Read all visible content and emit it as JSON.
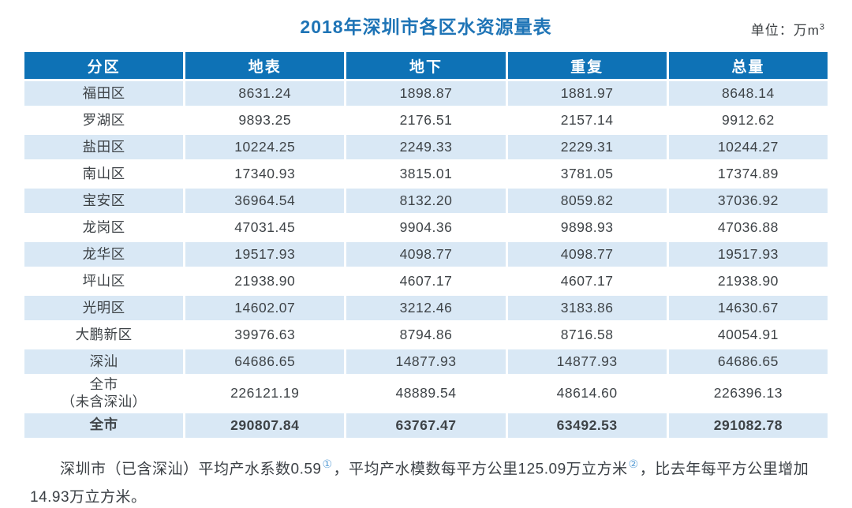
{
  "colors": {
    "header_bg": "#0e72b6",
    "row_alt_bg": "#d9e8f5",
    "title": "#1e74b6",
    "text": "#3e4347",
    "superscript": "#5b9fd6"
  },
  "chart_data": {
    "type": "table",
    "title": "2018年深圳市各区水资源量表",
    "unit": {
      "prefix": "单位：万m",
      "sup": "3"
    },
    "columns": [
      "分区",
      "地表",
      "地下",
      "重复",
      "总量"
    ],
    "rows": [
      {
        "name": "福田区",
        "values": [
          "8631.24",
          "1898.87",
          "1881.97",
          "8648.14"
        ]
      },
      {
        "name": "罗湖区",
        "values": [
          "9893.25",
          "2176.51",
          "2157.14",
          "9912.62"
        ]
      },
      {
        "name": "盐田区",
        "values": [
          "10224.25",
          "2249.33",
          "2229.31",
          "10244.27"
        ]
      },
      {
        "name": "南山区",
        "values": [
          "17340.93",
          "3815.01",
          "3781.05",
          "17374.89"
        ]
      },
      {
        "name": "宝安区",
        "values": [
          "36964.54",
          "8132.20",
          "8059.82",
          "37036.92"
        ]
      },
      {
        "name": "龙岗区",
        "values": [
          "47031.45",
          "9904.36",
          "9898.93",
          "47036.88"
        ]
      },
      {
        "name": "龙华区",
        "values": [
          "19517.93",
          "4098.77",
          "4098.77",
          "19517.93"
        ]
      },
      {
        "name": "坪山区",
        "values": [
          "21938.90",
          "4607.17",
          "4607.17",
          "21938.90"
        ]
      },
      {
        "name": "光明区",
        "values": [
          "14602.07",
          "3212.46",
          "3183.86",
          "14630.67"
        ]
      },
      {
        "name": "大鹏新区",
        "values": [
          "39976.63",
          "8794.86",
          "8716.58",
          "40054.91"
        ]
      },
      {
        "name": "深汕",
        "values": [
          "64686.65",
          "14877.93",
          "14877.93",
          "64686.65"
        ]
      },
      {
        "name": "全市\n（未含深汕）",
        "values": [
          "226121.19",
          "48889.54",
          "48614.60",
          "226396.13"
        ]
      },
      {
        "name": "全市",
        "values": [
          "290807.84",
          "63767.47",
          "63492.53",
          "291082.78"
        ],
        "bold": true
      }
    ],
    "footnote": {
      "segments": [
        {
          "text": "深圳市（已含深汕）平均产水系数0.59"
        },
        {
          "sup": "①"
        },
        {
          "text": "，平均产水模数每平方公里125.09万立方米"
        },
        {
          "sup": "②"
        },
        {
          "text": "，比去年每平方公里增加14.93万立方米。"
        }
      ]
    }
  }
}
